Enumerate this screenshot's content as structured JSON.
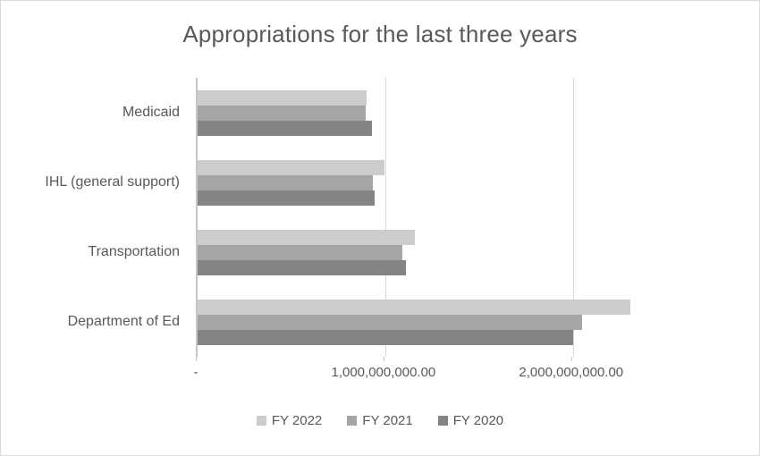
{
  "chart_data": {
    "type": "bar",
    "orientation": "horizontal",
    "title": "Appropriations for the last three years",
    "categories": [
      "Medicaid",
      "IHL (general support)",
      "Transportation",
      "Department of Ed"
    ],
    "series": [
      {
        "name": "FY 2022",
        "color": "#cccccc",
        "values": [
          900000000,
          995000000,
          1160000000,
          2305000000
        ]
      },
      {
        "name": "FY 2021",
        "color": "#a5a5a5",
        "values": [
          895000000,
          935000000,
          1090000000,
          2050000000
        ]
      },
      {
        "name": "FY 2020",
        "color": "#848484",
        "values": [
          930000000,
          945000000,
          1110000000,
          2000000000
        ]
      }
    ],
    "x_axis": {
      "min": 0,
      "max": 2630000000,
      "ticks": [
        {
          "value": 0,
          "label": "-"
        },
        {
          "value": 1000000000,
          "label": "1,000,000,000.00"
        },
        {
          "value": 2000000000,
          "label": "2,000,000,000.00"
        }
      ]
    },
    "legend": [
      "FY 2022",
      "FY 2021",
      "FY 2020"
    ],
    "legend_position": "bottom",
    "grid": true,
    "colors": {
      "title_text": "#595959",
      "axis_text": "#595959",
      "gridline": "#d9d9d9",
      "axis_line": "#c6c6c6"
    }
  }
}
